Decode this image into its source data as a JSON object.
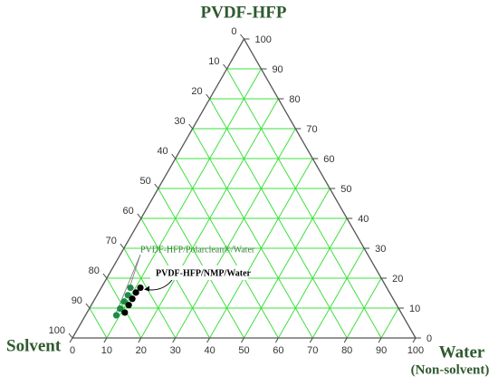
{
  "chart_data": {
    "type": "ternary",
    "top_label": "PVDF-HFP",
    "left_label": "Solvent",
    "right_label": "Water",
    "right_sublabel": "(Non-solvent)",
    "water_ticks": [
      0,
      10,
      20,
      30,
      40,
      50,
      60,
      70,
      80,
      90,
      100
    ],
    "solvent_ticks": [
      0,
      10,
      20,
      30,
      40,
      50,
      60,
      70,
      80,
      90,
      100
    ],
    "polymer_ticks": [
      0,
      10,
      20,
      30,
      40,
      50,
      60,
      70,
      80,
      90,
      100
    ],
    "grid": true,
    "grid_color": "#3ee03e",
    "series": [
      {
        "name": "PVDF-HFP/Polarclean®/Water",
        "color": "#1e8a4a",
        "label_color": "#3f7f3f",
        "water": [
          9,
          9,
          9,
          9,
          8.5
        ],
        "polymer": [
          7.6,
          9.8,
          12.2,
          14.3,
          16.8
        ]
      },
      {
        "name": "PVDF-HFP/NMP/Water",
        "color": "#000000",
        "label_color": "#000000",
        "water": [
          11,
          10.9,
          10.9,
          10.9,
          11.4
        ],
        "polymer": [
          8.5,
          11,
          13.1,
          15.2,
          16.8
        ]
      }
    ]
  }
}
